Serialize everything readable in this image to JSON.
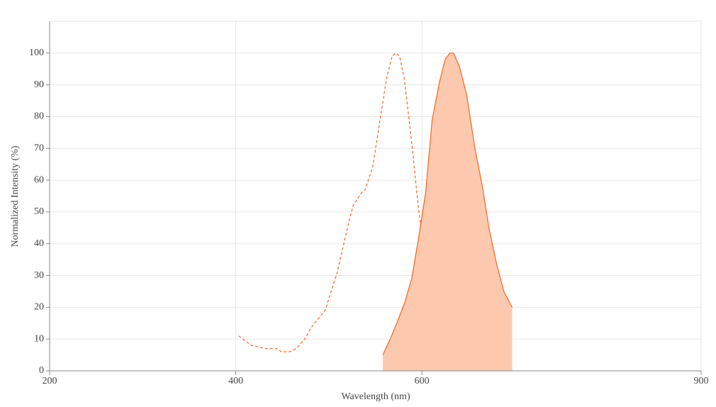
{
  "chart_data": {
    "type": "line",
    "x_label": "Wavelength (nm)",
    "y_label": "Normalized Intensity (%)",
    "xlim": [
      200,
      900
    ],
    "xticks": [
      200,
      400,
      600,
      900
    ],
    "ylim": [
      0,
      110
    ],
    "yticks": [
      0,
      10,
      20,
      30,
      40,
      50,
      60,
      70,
      80,
      90,
      100
    ],
    "grid": true,
    "series": [
      {
        "color": "#f26522",
        "dash": true,
        "x": [
          403,
          417,
          432,
          444,
          449,
          458,
          465,
          474,
          482,
          496,
          509,
          520,
          526,
          535,
          539,
          547,
          554,
          562,
          568,
          572,
          576,
          581,
          589,
          596,
          604,
          611,
          619,
          627,
          638
        ],
        "values": [
          11,
          8,
          7,
          7,
          6,
          6,
          7,
          10,
          14,
          19,
          31,
          45,
          52,
          56,
          57,
          64,
          77,
          92,
          99,
          100,
          99,
          92,
          72,
          52,
          34,
          19,
          10,
          5,
          2
        ]
      },
      {
        "color": "#f26522",
        "dash": false,
        "fill": "#fdc9ae",
        "x": [
          558,
          566,
          573,
          581,
          589,
          596,
          604,
          611,
          619,
          625,
          630,
          634,
          640,
          648,
          657,
          665,
          672,
          680,
          688,
          697
        ],
        "values": [
          5,
          10,
          15,
          21,
          29,
          41,
          56,
          79,
          91,
          98,
          100,
          100,
          96,
          87,
          70,
          58,
          45,
          34,
          25,
          20
        ]
      }
    ]
  }
}
